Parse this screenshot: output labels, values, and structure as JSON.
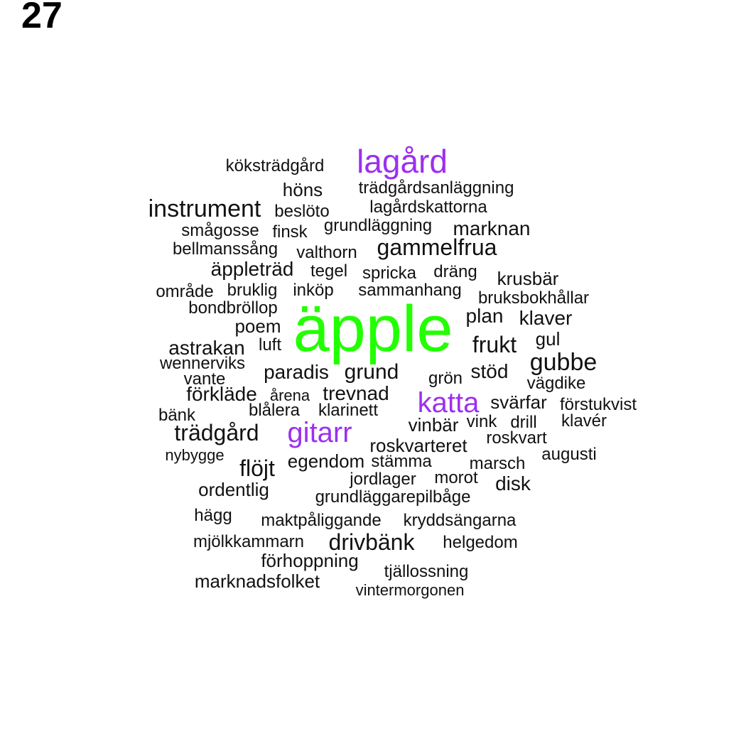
{
  "page_number": "27",
  "colors": {
    "largest": "#22ff00",
    "large": "#9b30f0",
    "default": "#111111"
  },
  "words": [
    {
      "text": "äpple",
      "weight": 5,
      "color": "largest"
    },
    {
      "text": "lagård",
      "weight": 3,
      "color": "large"
    },
    {
      "text": "katta",
      "weight": 3,
      "color": "large"
    },
    {
      "text": "gitarr",
      "weight": 3,
      "color": "large"
    },
    {
      "text": "instrument",
      "weight": 2,
      "color": "default"
    },
    {
      "text": "gubbe",
      "weight": 2,
      "color": "default"
    },
    {
      "text": "gammelfrua",
      "weight": 2,
      "color": "default"
    },
    {
      "text": "frukt",
      "weight": 2,
      "color": "default"
    },
    {
      "text": "trädgård",
      "weight": 2,
      "color": "default"
    },
    {
      "text": "flöjt",
      "weight": 2,
      "color": "default"
    },
    {
      "text": "drivbänk",
      "weight": 2,
      "color": "default"
    },
    {
      "text": "marknan",
      "weight": 1.5,
      "color": "default"
    },
    {
      "text": "äppleträd",
      "weight": 1.5,
      "color": "default"
    },
    {
      "text": "grund",
      "weight": 1.5,
      "color": "default"
    },
    {
      "text": "stöd",
      "weight": 1.5,
      "color": "default"
    },
    {
      "text": "paradis",
      "weight": 1.5,
      "color": "default"
    },
    {
      "text": "trevnad",
      "weight": 1.5,
      "color": "default"
    },
    {
      "text": "förkläde",
      "weight": 1.5,
      "color": "default"
    },
    {
      "text": "plan",
      "weight": 1.5,
      "color": "default"
    },
    {
      "text": "klaver",
      "weight": 1.5,
      "color": "default"
    },
    {
      "text": "astrakan",
      "weight": 1.5,
      "color": "default"
    },
    {
      "text": "disk",
      "weight": 1.5,
      "color": "default"
    },
    {
      "text": "krusbär",
      "weight": 1.5,
      "color": "default"
    },
    {
      "text": "ordentlig",
      "weight": 1.5,
      "color": "default"
    },
    {
      "text": "roskvarteret",
      "weight": 1.5,
      "color": "default"
    },
    {
      "text": "egendom",
      "weight": 1.5,
      "color": "default"
    },
    {
      "text": "köksträdgård",
      "weight": 1,
      "color": "default"
    },
    {
      "text": "höns",
      "weight": 1,
      "color": "default"
    },
    {
      "text": "trädgårdsanläggning",
      "weight": 1,
      "color": "default"
    },
    {
      "text": "beslöto",
      "weight": 1,
      "color": "default"
    },
    {
      "text": "lagårdskattorna",
      "weight": 1,
      "color": "default"
    },
    {
      "text": "smågosse",
      "weight": 1,
      "color": "default"
    },
    {
      "text": "finsk",
      "weight": 1,
      "color": "default"
    },
    {
      "text": "grundläggning",
      "weight": 1,
      "color": "default"
    },
    {
      "text": "bellmanssång",
      "weight": 1,
      "color": "default"
    },
    {
      "text": "valthorn",
      "weight": 1,
      "color": "default"
    },
    {
      "text": "tegel",
      "weight": 1,
      "color": "default"
    },
    {
      "text": "spricka",
      "weight": 1,
      "color": "default"
    },
    {
      "text": "dräng",
      "weight": 1,
      "color": "default"
    },
    {
      "text": "område",
      "weight": 1,
      "color": "default"
    },
    {
      "text": "bruklig",
      "weight": 1,
      "color": "default"
    },
    {
      "text": "inköp",
      "weight": 1,
      "color": "default"
    },
    {
      "text": "sammanhang",
      "weight": 1,
      "color": "default"
    },
    {
      "text": "bruksbokhållar",
      "weight": 1,
      "color": "default"
    },
    {
      "text": "bondbröllop",
      "weight": 1,
      "color": "default"
    },
    {
      "text": "poem",
      "weight": 1,
      "color": "default"
    },
    {
      "text": "gul",
      "weight": 1,
      "color": "default"
    },
    {
      "text": "luft",
      "weight": 1,
      "color": "default"
    },
    {
      "text": "wennerviks",
      "weight": 1,
      "color": "default"
    },
    {
      "text": "vante",
      "weight": 1,
      "color": "default"
    },
    {
      "text": "grön",
      "weight": 1,
      "color": "default"
    },
    {
      "text": "vägdike",
      "weight": 1,
      "color": "default"
    },
    {
      "text": "årena",
      "weight": 1,
      "color": "default"
    },
    {
      "text": "svärfar",
      "weight": 1,
      "color": "default"
    },
    {
      "text": "förstukvist",
      "weight": 1,
      "color": "default"
    },
    {
      "text": "bänk",
      "weight": 1,
      "color": "default"
    },
    {
      "text": "blålera",
      "weight": 1,
      "color": "default"
    },
    {
      "text": "klarinett",
      "weight": 1,
      "color": "default"
    },
    {
      "text": "vinbär",
      "weight": 1,
      "color": "default"
    },
    {
      "text": "vink",
      "weight": 1,
      "color": "default"
    },
    {
      "text": "drill",
      "weight": 1,
      "color": "default"
    },
    {
      "text": "klavér",
      "weight": 1,
      "color": "default"
    },
    {
      "text": "roskvart",
      "weight": 1,
      "color": "default"
    },
    {
      "text": "nybygge",
      "weight": 1,
      "color": "default"
    },
    {
      "text": "stämma",
      "weight": 1,
      "color": "default"
    },
    {
      "text": "augusti",
      "weight": 1,
      "color": "default"
    },
    {
      "text": "marsch",
      "weight": 1,
      "color": "default"
    },
    {
      "text": "jordlager",
      "weight": 1,
      "color": "default"
    },
    {
      "text": "morot",
      "weight": 1,
      "color": "default"
    },
    {
      "text": "grundläggarepilbåge",
      "weight": 1,
      "color": "default"
    },
    {
      "text": "hägg",
      "weight": 1,
      "color": "default"
    },
    {
      "text": "maktpåliggande",
      "weight": 1,
      "color": "default"
    },
    {
      "text": "kryddsängarna",
      "weight": 1,
      "color": "default"
    },
    {
      "text": "mjölkkammarn",
      "weight": 1,
      "color": "default"
    },
    {
      "text": "helgedom",
      "weight": 1,
      "color": "default"
    },
    {
      "text": "förhoppning",
      "weight": 1,
      "color": "default"
    },
    {
      "text": "tjällossning",
      "weight": 1,
      "color": "default"
    },
    {
      "text": "marknadsfolket",
      "weight": 1,
      "color": "default"
    },
    {
      "text": "vintermorgonen",
      "weight": 1,
      "color": "default"
    }
  ]
}
